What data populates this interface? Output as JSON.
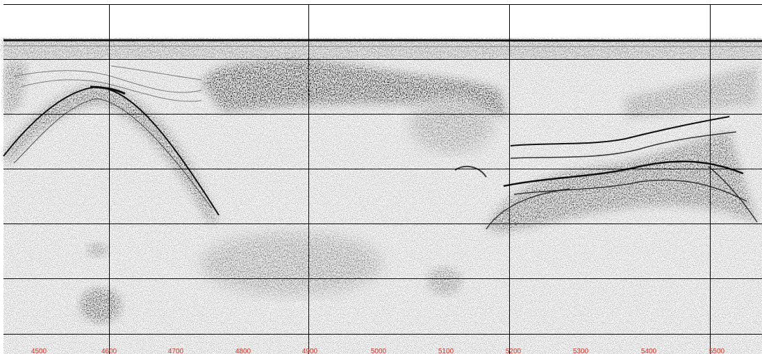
{
  "section": {
    "shot_labels": [
      "4500",
      "4600",
      "4700",
      "4800",
      "4900",
      "5000",
      "5100",
      "5200",
      "5300",
      "5400",
      "5500"
    ],
    "colors": {
      "background": "#ffffff",
      "grid": "#000000",
      "label": "#c0392b",
      "reflector": "#111111"
    }
  }
}
